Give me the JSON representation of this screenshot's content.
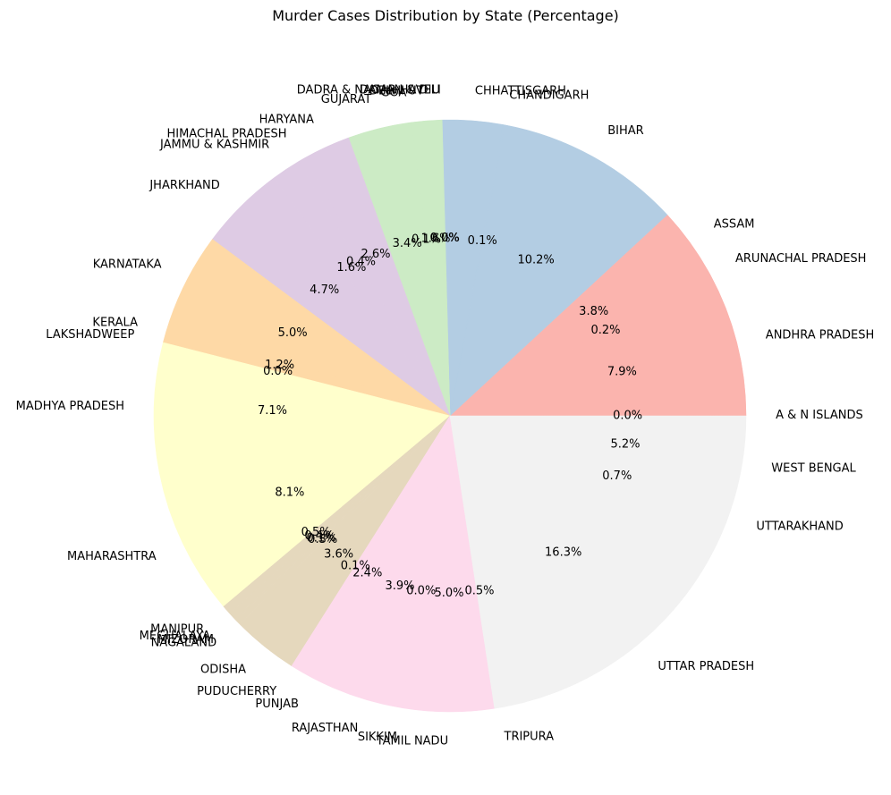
{
  "chart_data": {
    "type": "pie",
    "title": "Murder Cases Distribution by State (Percentage)",
    "start_angle_deg": 0,
    "direction": "counterclockwise",
    "slices": [
      {
        "label": "A & N ISLANDS",
        "value": 0.04,
        "pct_label": "0.0%",
        "color": "#fbb4ae"
      },
      {
        "label": "ANDHRA PRADESH",
        "value": 7.9,
        "pct_label": "7.9%",
        "color": "#fbb4ae"
      },
      {
        "label": "ARUNACHAL PRADESH",
        "value": 0.2,
        "pct_label": "0.2%",
        "color": "#fbb4ae"
      },
      {
        "label": "ASSAM",
        "value": 3.8,
        "pct_label": "3.8%",
        "color": "#fbb4ae"
      },
      {
        "label": "BIHAR",
        "value": 10.2,
        "pct_label": "10.2%",
        "color": "#b3cde3"
      },
      {
        "label": "CHANDIGARH",
        "value": 0.1,
        "pct_label": "0.1%",
        "color": "#b3cde3"
      },
      {
        "label": "CHHATTISGARH",
        "value": 3.3,
        "pct_label": "",
        "color": "#b3cde3"
      },
      {
        "label": "DADRA & NAGAR HAVELI",
        "value": 0.05,
        "pct_label": "0.0%",
        "color": "#ccebc5"
      },
      {
        "label": "DAMAN & DIU",
        "value": 0.02,
        "pct_label": "0.0%",
        "color": "#ccebc5"
      },
      {
        "label": "DELHI UT",
        "value": 1.6,
        "pct_label": "1.6%",
        "color": "#ccebc5"
      },
      {
        "label": "GOA",
        "value": 0.1,
        "pct_label": "0.1%",
        "color": "#ccebc5"
      },
      {
        "label": "GUJARAT",
        "value": 3.4,
        "pct_label": "3.4%",
        "color": "#ccebc5"
      },
      {
        "label": "HARYANA",
        "value": 2.6,
        "pct_label": "2.6%",
        "color": "#decbe4"
      },
      {
        "label": "HIMACHAL PRADESH",
        "value": 0.4,
        "pct_label": "0.4%",
        "color": "#decbe4"
      },
      {
        "label": "JAMMU & KASHMIR",
        "value": 1.6,
        "pct_label": "1.6%",
        "color": "#decbe4"
      },
      {
        "label": "JHARKHAND",
        "value": 4.7,
        "pct_label": "4.7%",
        "color": "#decbe4"
      },
      {
        "label": "KARNATAKA",
        "value": 5.0,
        "pct_label": "5.0%",
        "color": "#fed9a6"
      },
      {
        "label": "KERALA",
        "value": 1.2,
        "pct_label": "1.2%",
        "color": "#fed9a6"
      },
      {
        "label": "LAKSHADWEEP",
        "value": 0.02,
        "pct_label": "0.0%",
        "color": "#fed9a6"
      },
      {
        "label": "MADHYA PRADESH",
        "value": 7.1,
        "pct_label": "7.1%",
        "color": "#ffffcc"
      },
      {
        "label": "MAHARASHTRA",
        "value": 8.1,
        "pct_label": "8.1%",
        "color": "#ffffcc"
      },
      {
        "label": "MANIPUR",
        "value": 0.5,
        "pct_label": "0.5%",
        "color": "#e5d8bd"
      },
      {
        "label": "MEGHALAYA",
        "value": 0.4,
        "pct_label": "0.4%",
        "color": "#e5d8bd"
      },
      {
        "label": "MIZORAM",
        "value": 0.1,
        "pct_label": "0.1%",
        "color": "#e5d8bd"
      },
      {
        "label": "NAGALAND",
        "value": 0.3,
        "pct_label": "0.3%",
        "color": "#e5d8bd"
      },
      {
        "label": "ODISHA",
        "value": 3.6,
        "pct_label": "3.6%",
        "color": "#e5d8bd"
      },
      {
        "label": "PUDUCHERRY",
        "value": 0.1,
        "pct_label": "0.1%",
        "color": "#fddaec"
      },
      {
        "label": "PUNJAB",
        "value": 2.4,
        "pct_label": "2.4%",
        "color": "#fddaec"
      },
      {
        "label": "RAJASTHAN",
        "value": 3.9,
        "pct_label": "3.9%",
        "color": "#fddaec"
      },
      {
        "label": "SIKKIM",
        "value": 0.04,
        "pct_label": "0.0%",
        "color": "#fddaec"
      },
      {
        "label": "TAMIL NADU",
        "value": 5.0,
        "pct_label": "5.0%",
        "color": "#fddaec"
      },
      {
        "label": "TRIPURA",
        "value": 0.5,
        "pct_label": "0.5%",
        "color": "#f2f2f2"
      },
      {
        "label": "UTTAR PRADESH",
        "value": 16.3,
        "pct_label": "16.3%",
        "color": "#f2f2f2"
      },
      {
        "label": "UTTARAKHAND",
        "value": 0.7,
        "pct_label": "0.7%",
        "color": "#f2f2f2"
      },
      {
        "label": "WEST BENGAL",
        "value": 5.2,
        "pct_label": "5.2%",
        "color": "#f2f2f2"
      }
    ]
  }
}
